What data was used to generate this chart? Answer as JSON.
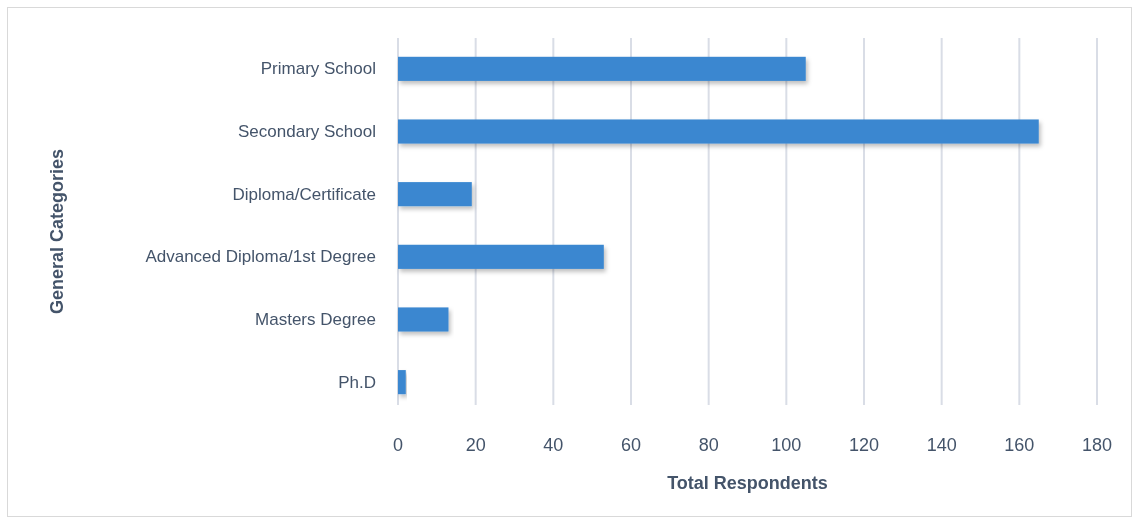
{
  "chart_data": {
    "type": "bar",
    "orientation": "horizontal",
    "xlabel": "Total Respondents",
    "ylabel": "General Categories",
    "categories": [
      "Primary School",
      "Secondary School",
      "Diploma/Certificate",
      "Advanced Diploma/1st Degree",
      "Masters Degree",
      "Ph.D"
    ],
    "values": [
      105,
      165,
      19,
      53,
      13,
      2
    ],
    "color": "#3a87d0",
    "xlim": [
      0,
      180
    ],
    "xticks": [
      0,
      20,
      40,
      60,
      80,
      100,
      120,
      140,
      160,
      180
    ],
    "grid": "x"
  }
}
